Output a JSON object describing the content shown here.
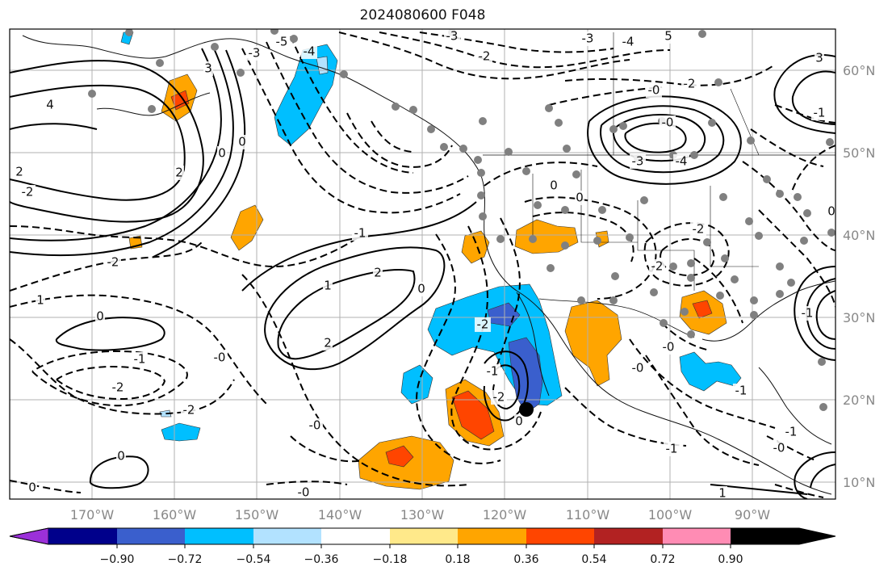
{
  "title": "2024080600 F048",
  "lat_labels": [
    "60°N",
    "50°N",
    "40°N",
    "30°N",
    "20°N",
    "10°N"
  ],
  "lon_labels": [
    "170°W",
    "160°W",
    "150°W",
    "140°W",
    "130°W",
    "120°W",
    "110°W",
    "100°W",
    "90°W"
  ],
  "colorbar": {
    "ticks": [
      "−0.90",
      "−0.72",
      "−0.54",
      "−0.36",
      "−0.18",
      "0.18",
      "0.36",
      "0.54",
      "0.72",
      "0.90"
    ],
    "colors": [
      "#9b30d9",
      "#00008b",
      "#3a5fcd",
      "#00bfff",
      "#b2e2ff",
      "#ffffff",
      "#ffe98a",
      "#ffa500",
      "#ff4500",
      "#b22222",
      "#ff8cb4"
    ]
  },
  "contour_labels": [
    {
      "text": "4",
      "pos": [
        62,
        130
      ]
    },
    {
      "text": "2",
      "pos": [
        24,
        213
      ]
    },
    {
      "text": "-2",
      "pos": [
        34,
        238
      ]
    },
    {
      "text": "0",
      "pos": [
        275,
        190
      ]
    },
    {
      "text": "0",
      "pos": [
        300,
        176
      ]
    },
    {
      "text": "2",
      "pos": [
        222,
        214
      ]
    },
    {
      "text": "3",
      "pos": [
        258,
        85
      ]
    },
    {
      "text": "-3",
      "pos": [
        315,
        66
      ]
    },
    {
      "text": "-5",
      "pos": [
        349,
        52
      ]
    },
    {
      "text": "-4",
      "pos": [
        383,
        64
      ]
    },
    {
      "text": "-2",
      "pos": [
        140,
        325
      ]
    },
    {
      "text": "1",
      "pos": [
        50,
        372
      ]
    },
    {
      "text": "0",
      "pos": [
        124,
        392
      ]
    },
    {
      "text": "-1",
      "pos": [
        173,
        445
      ]
    },
    {
      "text": "-2",
      "pos": [
        146,
        480
      ]
    },
    {
      "text": "-2",
      "pos": [
        234,
        508
      ]
    },
    {
      "text": "0",
      "pos": [
        150,
        565
      ]
    },
    {
      "text": "0",
      "pos": [
        40,
        604
      ]
    },
    {
      "text": "-1",
      "pos": [
        446,
        289
      ]
    },
    {
      "text": "2",
      "pos": [
        468,
        338
      ]
    },
    {
      "text": "1",
      "pos": [
        406,
        354
      ]
    },
    {
      "text": "2",
      "pos": [
        406,
        425
      ]
    },
    {
      "text": "0",
      "pos": [
        522,
        358
      ]
    },
    {
      "text": "-0",
      "pos": [
        272,
        443
      ]
    },
    {
      "text": "-0",
      "pos": [
        390,
        527
      ]
    },
    {
      "text": "-0",
      "pos": [
        376,
        610
      ]
    },
    {
      "text": "0",
      "pos": [
        686,
        230
      ]
    },
    {
      "text": "0",
      "pos": [
        718,
        245
      ]
    },
    {
      "text": "-2",
      "pos": [
        598,
        402
      ]
    },
    {
      "text": "-2",
      "pos": [
        618,
        492
      ]
    },
    {
      "text": "-1",
      "pos": [
        610,
        460
      ]
    },
    {
      "text": "0",
      "pos": [
        643,
        522
      ]
    },
    {
      "text": "-2",
      "pos": [
        854,
        104
      ]
    },
    {
      "text": "-0",
      "pos": [
        810,
        112
      ]
    },
    {
      "text": "-3",
      "pos": [
        790,
        200
      ]
    },
    {
      "text": "-4",
      "pos": [
        844,
        200
      ]
    },
    {
      "text": "-0",
      "pos": [
        827,
        152
      ]
    },
    {
      "text": "-4",
      "pos": [
        778,
        52
      ]
    },
    {
      "text": "5",
      "pos": [
        828,
        45
      ]
    },
    {
      "text": "-3",
      "pos": [
        728,
        48
      ]
    },
    {
      "text": "-2",
      "pos": [
        600,
        70
      ]
    },
    {
      "text": "-3",
      "pos": [
        560,
        45
      ]
    },
    {
      "text": "-2",
      "pos": [
        865,
        284
      ]
    },
    {
      "text": "-2",
      "pos": [
        814,
        330
      ]
    },
    {
      "text": "-0",
      "pos": [
        828,
        430
      ]
    },
    {
      "text": "-0",
      "pos": [
        790,
        456
      ]
    },
    {
      "text": "-1",
      "pos": [
        918,
        484
      ]
    },
    {
      "text": "-1",
      "pos": [
        832,
        556
      ]
    },
    {
      "text": "-0",
      "pos": [
        965,
        555
      ]
    },
    {
      "text": "-1",
      "pos": [
        980,
        535
      ]
    },
    {
      "text": "1",
      "pos": [
        895,
        611
      ]
    },
    {
      "text": "0",
      "pos": [
        1030,
        262
      ]
    },
    {
      "text": "3",
      "pos": [
        1015,
        72
      ]
    },
    {
      "text": "-1",
      "pos": [
        1015,
        140
      ]
    },
    {
      "text": "-1",
      "pos": [
        1000,
        388
      ]
    }
  ]
}
